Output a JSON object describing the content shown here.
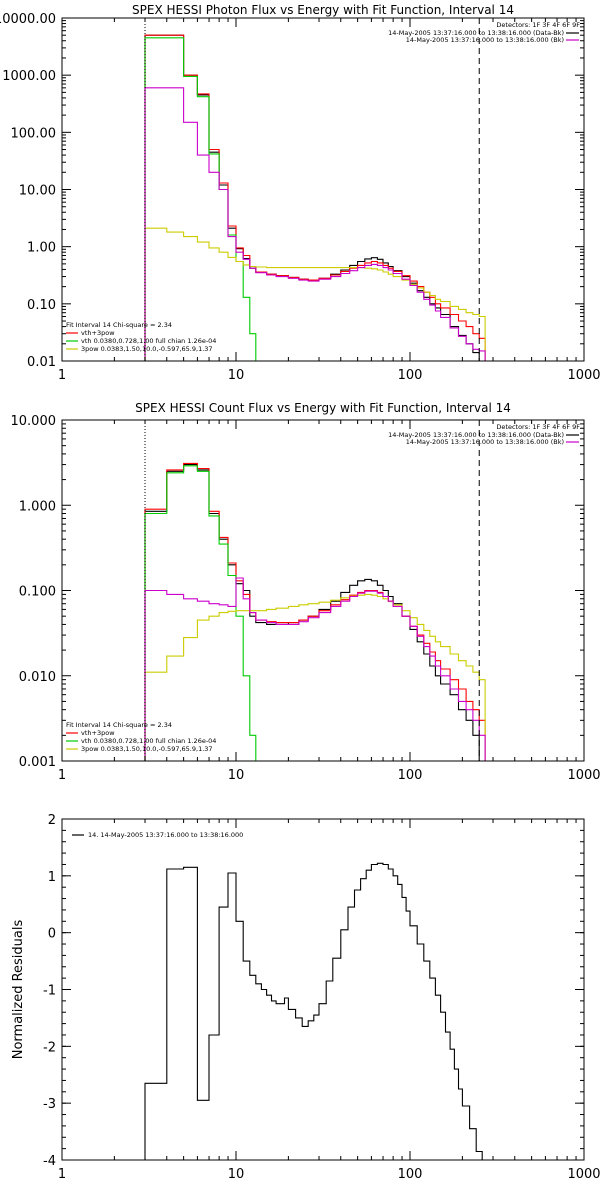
{
  "chart_data": [
    {
      "type": "line",
      "title": "SPEX HESSI Photon Flux vs Energy with Fit Function, Interval 14",
      "xscale": "log",
      "yscale": "log",
      "xlim": [
        1,
        1000
      ],
      "ylim": [
        0.01,
        10000
      ],
      "x_ticks": [
        1,
        10,
        100,
        1000
      ],
      "x_tick_labels": [
        "1",
        "10",
        "100",
        "1000"
      ],
      "y_ticks": [
        0.01,
        0.1,
        1,
        10,
        100,
        1000,
        10000
      ],
      "y_tick_labels": [
        "0.01",
        "0.10",
        "1.00",
        "10.00",
        "100.00",
        "1000.00",
        "10000.00"
      ],
      "grid": false,
      "vlines": [
        {
          "x": 3,
          "style": "dotted"
        },
        {
          "x": 250,
          "style": "dashed"
        }
      ],
      "legend_top": {
        "position": "top-right",
        "header": "Detectors: 1F 3F 4F 6F 9F",
        "entries": [
          {
            "label": "14-May-2005 13:37:16.000 to 13:38:16.000 (Data-Bk)",
            "color": "#000000"
          },
          {
            "label": "14-May-2005 13:37:16.000 to 13:38:16.000 (Bk)",
            "color": "#cc00cc"
          }
        ]
      },
      "legend_bottom": {
        "position": "bottom-left",
        "header": "Fit Interval 14   Chi-square = 2.34",
        "entries": [
          {
            "label": "vth+3pow",
            "color": "#ff0000"
          },
          {
            "label": "vth 0.0380,0.728,1.00  full chian 1.26e-04",
            "color": "#00cc00"
          },
          {
            "label": "3pow 0.0383,1.50,10.0,-0.597,65.9,1.37",
            "color": "#cccc00"
          }
        ]
      },
      "series": [
        {
          "color": "#000000",
          "x": [
            3,
            4,
            5,
            6,
            7,
            8,
            9,
            10,
            11,
            12,
            13,
            15,
            17,
            20,
            23,
            26,
            30,
            35,
            40,
            45,
            50,
            55,
            60,
            65,
            70,
            75,
            80,
            90,
            100,
            110,
            120,
            130,
            140,
            150,
            170,
            190,
            210,
            230,
            250,
            270
          ],
          "y": [
            5000,
            5000,
            1000,
            450,
            45,
            12,
            2.1,
            0.92,
            0.62,
            0.42,
            0.36,
            0.33,
            0.31,
            0.29,
            0.27,
            0.26,
            0.28,
            0.33,
            0.39,
            0.47,
            0.55,
            0.61,
            0.64,
            0.6,
            0.52,
            0.45,
            0.38,
            0.3,
            0.23,
            0.17,
            0.13,
            0.1,
            0.085,
            0.065,
            0.04,
            0.028,
            0.02,
            0.014,
            0.01,
            0.01
          ]
        },
        {
          "color": "#ff0000",
          "x": [
            3,
            4,
            5,
            6,
            7,
            8,
            9,
            10,
            11,
            12,
            13,
            15,
            17,
            20,
            23,
            26,
            30,
            35,
            40,
            45,
            50,
            55,
            60,
            65,
            70,
            75,
            80,
            90,
            100,
            110,
            120,
            130,
            140,
            150,
            170,
            190,
            210,
            230,
            250,
            270
          ],
          "y": [
            5000,
            5000,
            1000,
            470,
            50,
            13,
            2.3,
            0.95,
            0.7,
            0.45,
            0.36,
            0.33,
            0.31,
            0.29,
            0.27,
            0.26,
            0.28,
            0.32,
            0.37,
            0.42,
            0.47,
            0.52,
            0.55,
            0.52,
            0.47,
            0.42,
            0.37,
            0.31,
            0.25,
            0.2,
            0.16,
            0.13,
            0.1,
            0.085,
            0.065,
            0.05,
            0.04,
            0.03,
            0.025,
            0.01
          ]
        },
        {
          "color": "#00cc00",
          "x": [
            3,
            4,
            5,
            6,
            7,
            8,
            9,
            10,
            11,
            12,
            13
          ],
          "y": [
            4500,
            4500,
            950,
            420,
            42,
            10,
            1.6,
            0.55,
            0.13,
            0.03,
            0.01
          ]
        },
        {
          "color": "#cccc00",
          "x": [
            3,
            4,
            5,
            6,
            7,
            8,
            9,
            10,
            11,
            12,
            13,
            15,
            17,
            20,
            23,
            26,
            30,
            35,
            40,
            45,
            50,
            55,
            60,
            65,
            70,
            75,
            80,
            90,
            100,
            110,
            120,
            130,
            140,
            150,
            170,
            190,
            210,
            230,
            250,
            270
          ],
          "y": [
            2.1,
            1.8,
            1.5,
            1.2,
            0.95,
            0.8,
            0.65,
            0.55,
            0.48,
            0.45,
            0.44,
            0.43,
            0.43,
            0.43,
            0.43,
            0.43,
            0.43,
            0.43,
            0.43,
            0.43,
            0.43,
            0.42,
            0.41,
            0.39,
            0.36,
            0.33,
            0.3,
            0.26,
            0.22,
            0.19,
            0.16,
            0.14,
            0.12,
            0.11,
            0.09,
            0.08,
            0.07,
            0.065,
            0.06,
            0.01
          ]
        },
        {
          "color": "#cc00cc",
          "x": [
            3,
            4,
            5,
            6,
            7,
            8,
            9,
            10,
            11,
            12,
            13,
            15,
            17,
            20,
            23,
            26,
            30,
            35,
            40,
            45,
            50,
            55,
            60,
            65,
            70,
            75,
            80,
            90,
            100,
            110,
            120,
            130,
            140,
            150,
            170,
            190,
            210,
            230,
            250,
            270
          ],
          "y": [
            600,
            600,
            150,
            40,
            20,
            10,
            1.5,
            0.8,
            0.6,
            0.42,
            0.35,
            0.32,
            0.3,
            0.28,
            0.26,
            0.25,
            0.27,
            0.3,
            0.34,
            0.38,
            0.43,
            0.47,
            0.49,
            0.47,
            0.43,
            0.39,
            0.34,
            0.27,
            0.21,
            0.16,
            0.12,
            0.095,
            0.075,
            0.058,
            0.038,
            0.027,
            0.02,
            0.016,
            0.015,
            0.01
          ]
        }
      ]
    },
    {
      "type": "line",
      "title": "SPEX HESSI Count Flux vs Energy with Fit Function, Interval 14",
      "xscale": "log",
      "yscale": "log",
      "xlim": [
        1,
        1000
      ],
      "ylim": [
        0.001,
        10
      ],
      "x_ticks": [
        1,
        10,
        100,
        1000
      ],
      "x_tick_labels": [
        "1",
        "10",
        "100",
        "1000"
      ],
      "y_ticks": [
        0.001,
        0.01,
        0.1,
        1,
        10
      ],
      "y_tick_labels": [
        "0.001",
        "0.010",
        "0.100",
        "1.000",
        "10.000"
      ],
      "grid": false,
      "vlines": [
        {
          "x": 3,
          "style": "dotted"
        },
        {
          "x": 250,
          "style": "dashed"
        }
      ],
      "legend_top": {
        "position": "top-right",
        "header": "Detectors: 1F 3F 4F 6F 9F",
        "entries": [
          {
            "label": "14-May-2005 13:37:16.000 to 13:38:16.000 (Data-Bk)",
            "color": "#000000"
          },
          {
            "label": "14-May-2005 13:37:16.000 to 13:38:16.000 (Bk)",
            "color": "#cc00cc"
          }
        ]
      },
      "legend_bottom": {
        "position": "bottom-left",
        "header": "Fit Interval 14   Chi-square = 2.34",
        "entries": [
          {
            "label": "vth+3pow",
            "color": "#ff0000"
          },
          {
            "label": "vth 0.0380,0.728,1.00  full chian 1.26e-04",
            "color": "#00cc00"
          },
          {
            "label": "3pow 0.0383,1.50,10.0,-0.597,65.9,1.37",
            "color": "#cccc00"
          }
        ]
      },
      "series": [
        {
          "color": "#000000",
          "x": [
            3,
            4,
            5,
            6,
            7,
            8,
            9,
            10,
            11,
            12,
            13,
            15,
            17,
            20,
            23,
            26,
            30,
            35,
            40,
            45,
            50,
            55,
            60,
            65,
            70,
            75,
            80,
            90,
            100,
            110,
            120,
            130,
            140,
            150,
            170,
            190,
            210,
            230,
            250,
            270
          ],
          "y": [
            0.85,
            2.5,
            3.0,
            2.6,
            0.8,
            0.4,
            0.2,
            0.12,
            0.1,
            0.05,
            0.042,
            0.04,
            0.042,
            0.04,
            0.045,
            0.05,
            0.06,
            0.075,
            0.095,
            0.115,
            0.13,
            0.135,
            0.13,
            0.115,
            0.1,
            0.085,
            0.07,
            0.05,
            0.035,
            0.025,
            0.018,
            0.013,
            0.01,
            0.008,
            0.006,
            0.004,
            0.003,
            0.002,
            0.001,
            0.001
          ]
        },
        {
          "color": "#ff0000",
          "x": [
            3,
            4,
            5,
            6,
            7,
            8,
            9,
            10,
            11,
            12,
            13,
            15,
            17,
            20,
            23,
            26,
            30,
            35,
            40,
            45,
            50,
            55,
            60,
            65,
            70,
            75,
            80,
            90,
            100,
            110,
            120,
            130,
            140,
            150,
            170,
            190,
            210,
            230,
            250,
            270
          ],
          "y": [
            0.9,
            2.6,
            3.1,
            2.7,
            0.85,
            0.42,
            0.21,
            0.13,
            0.09,
            0.055,
            0.045,
            0.043,
            0.042,
            0.042,
            0.045,
            0.05,
            0.058,
            0.068,
            0.078,
            0.088,
            0.095,
            0.1,
            0.1,
            0.095,
            0.085,
            0.075,
            0.065,
            0.05,
            0.038,
            0.03,
            0.024,
            0.019,
            0.015,
            0.012,
            0.009,
            0.007,
            0.005,
            0.004,
            0.003,
            0.001
          ]
        },
        {
          "color": "#00cc00",
          "x": [
            3,
            4,
            5,
            6,
            7,
            8,
            9,
            10,
            11,
            12,
            13
          ],
          "y": [
            0.8,
            2.4,
            2.9,
            2.5,
            0.75,
            0.35,
            0.15,
            0.05,
            0.01,
            0.002,
            0.001
          ]
        },
        {
          "color": "#cccc00",
          "x": [
            3,
            4,
            5,
            6,
            7,
            8,
            9,
            10,
            11,
            12,
            13,
            15,
            17,
            20,
            23,
            26,
            30,
            35,
            40,
            45,
            50,
            55,
            60,
            65,
            70,
            75,
            80,
            90,
            100,
            110,
            120,
            130,
            140,
            150,
            170,
            190,
            210,
            230,
            250,
            270
          ],
          "y": [
            0.011,
            0.017,
            0.028,
            0.045,
            0.05,
            0.055,
            0.057,
            0.058,
            0.058,
            0.058,
            0.058,
            0.06,
            0.062,
            0.065,
            0.068,
            0.07,
            0.073,
            0.077,
            0.082,
            0.086,
            0.088,
            0.09,
            0.088,
            0.085,
            0.08,
            0.074,
            0.068,
            0.058,
            0.048,
            0.04,
            0.034,
            0.029,
            0.025,
            0.022,
            0.018,
            0.015,
            0.013,
            0.011,
            0.009,
            0.001
          ]
        },
        {
          "color": "#cc00cc",
          "x": [
            3,
            4,
            5,
            6,
            7,
            8,
            9,
            10,
            11,
            12,
            13,
            15,
            17,
            20,
            23,
            26,
            30,
            35,
            40,
            45,
            50,
            55,
            60,
            65,
            70,
            75,
            80,
            90,
            100,
            110,
            120,
            130,
            140,
            150,
            170,
            190,
            210,
            230,
            250,
            270
          ],
          "y": [
            0.1,
            0.09,
            0.08,
            0.075,
            0.07,
            0.068,
            0.065,
            0.14,
            0.08,
            0.055,
            0.045,
            0.042,
            0.04,
            0.04,
            0.043,
            0.048,
            0.055,
            0.065,
            0.075,
            0.085,
            0.093,
            0.098,
            0.098,
            0.093,
            0.085,
            0.075,
            0.065,
            0.05,
            0.038,
            0.029,
            0.022,
            0.017,
            0.013,
            0.01,
            0.007,
            0.005,
            0.004,
            0.003,
            0.002,
            0.001
          ]
        }
      ]
    },
    {
      "type": "line",
      "title": "",
      "xlabel": "",
      "ylabel": "Normalized Residuals",
      "xscale": "log",
      "yscale": "linear",
      "xlim": [
        1,
        1000
      ],
      "ylim": [
        -4,
        2
      ],
      "x_ticks": [
        1,
        10,
        100,
        1000
      ],
      "x_tick_labels": [
        "1",
        "10",
        "100",
        "1000"
      ],
      "y_ticks": [
        -4,
        -3,
        -2,
        -1,
        0,
        1,
        2
      ],
      "y_tick_labels": [
        "-4",
        "-3",
        "-2",
        "-1",
        "0",
        "1",
        "2"
      ],
      "grid": false,
      "legend": {
        "position": "top-left",
        "entries": [
          {
            "label": "14. 14-May-2005 13:37:16.000 to 13:38:16.000",
            "color": "#000000"
          }
        ]
      },
      "series": [
        {
          "color": "#000000",
          "x": [
            3,
            4,
            5,
            6,
            7,
            8,
            9,
            10,
            11,
            12,
            13,
            14,
            15,
            16,
            17,
            18,
            19,
            20,
            22,
            24,
            26,
            28,
            30,
            33,
            36,
            40,
            44,
            48,
            52,
            56,
            60,
            65,
            70,
            75,
            80,
            85,
            90,
            95,
            100,
            110,
            120,
            130,
            140,
            150,
            160,
            170,
            180,
            190,
            200,
            220,
            240,
            260
          ],
          "y": [
            -2.65,
            1.12,
            1.15,
            -2.95,
            -1.8,
            0.45,
            1.05,
            0.2,
            -0.5,
            -0.75,
            -0.9,
            -1.0,
            -1.1,
            -1.2,
            -1.25,
            -1.25,
            -1.15,
            -1.35,
            -1.5,
            -1.65,
            -1.55,
            -1.45,
            -1.25,
            -0.85,
            -0.45,
            0.05,
            0.45,
            0.75,
            0.95,
            1.1,
            1.2,
            1.22,
            1.2,
            1.12,
            1.0,
            0.85,
            0.62,
            0.38,
            0.12,
            -0.2,
            -0.5,
            -0.8,
            -1.1,
            -1.4,
            -1.75,
            -2.05,
            -2.4,
            -2.75,
            -3.05,
            -3.45,
            -3.85,
            -4.0
          ]
        }
      ]
    }
  ]
}
